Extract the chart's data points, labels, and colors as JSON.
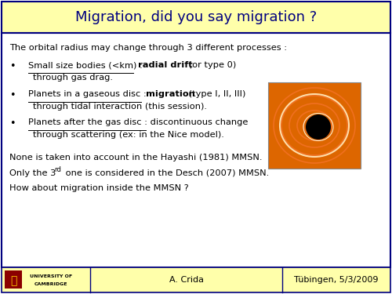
{
  "title": "Migration, did you say migration ?",
  "title_bg": "#ffffaa",
  "title_color": "#000080",
  "slide_bg": "#ffffff",
  "border_color": "#000080",
  "footer_bg": "#ffffaa",
  "footer_center": "A. Crida",
  "footer_right": "Tübingen, 5/3/2009",
  "fs_title": 13.0,
  "fs_body": 8.2,
  "fs_footer": 8.0
}
